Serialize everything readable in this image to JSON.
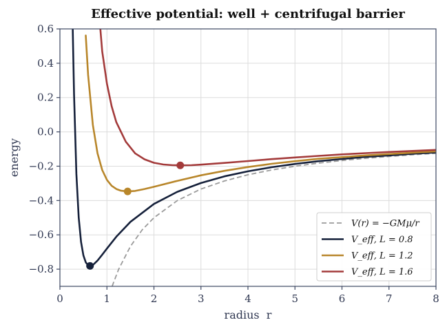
{
  "chart_data": {
    "type": "line",
    "title": "Effective potential: well + centrifugal barrier",
    "xlabel": "radius  r",
    "ylabel": "energy",
    "xlim": [
      0,
      8
    ],
    "ylim": [
      -0.9,
      0.6
    ],
    "xticks": [
      0,
      1,
      2,
      3,
      4,
      5,
      6,
      7,
      8
    ],
    "yticks": [
      -0.8,
      -0.6,
      -0.4,
      -0.2,
      0.0,
      0.2,
      0.4,
      0.6
    ],
    "xtick_labels": [
      "0",
      "1",
      "2",
      "3",
      "4",
      "5",
      "6",
      "7",
      "8"
    ],
    "ytick_labels": [
      "−0.8",
      "−0.6",
      "−0.4",
      "−0.2",
      "0.0",
      "0.2",
      "0.4",
      "0.6"
    ],
    "grid": true,
    "legend_position": "lower-right",
    "series": [
      {
        "name": "V(r) = −GMμ/r",
        "style": "dashed",
        "color": "#9a9a9a",
        "x": [
          1.11,
          1.25,
          1.5,
          1.75,
          2.0,
          2.5,
          3.0,
          3.5,
          4.0,
          4.5,
          5.0,
          5.5,
          6.0,
          6.5,
          7.0,
          7.5,
          8.0
        ],
        "y": [
          -0.9,
          -0.8,
          -0.667,
          -0.571,
          -0.5,
          -0.4,
          -0.333,
          -0.286,
          -0.25,
          -0.222,
          -0.2,
          -0.182,
          -0.167,
          -0.154,
          -0.143,
          -0.133,
          -0.125
        ]
      },
      {
        "name": "V_eff,  L = 0.8",
        "color": "#15203a",
        "minimum": {
          "x": 0.64,
          "y": -0.781
        },
        "x": [
          0.27,
          0.3,
          0.35,
          0.4,
          0.45,
          0.5,
          0.55,
          0.6,
          0.64,
          0.7,
          0.8,
          0.9,
          1.0,
          1.2,
          1.5,
          2.0,
          2.5,
          3.0,
          3.5,
          4.0,
          4.5,
          5.0,
          5.5,
          6.0,
          6.5,
          7.0,
          7.5,
          8.0
        ],
        "y": [
          0.64,
          0.22,
          -0.245,
          -0.5,
          -0.642,
          -0.72,
          -0.76,
          -0.778,
          -0.781,
          -0.776,
          -0.75,
          -0.716,
          -0.68,
          -0.611,
          -0.524,
          -0.42,
          -0.349,
          -0.298,
          -0.259,
          -0.23,
          -0.206,
          -0.187,
          -0.171,
          -0.158,
          -0.146,
          -0.137,
          -0.128,
          -0.12
        ]
      },
      {
        "name": "V_eff,  L = 1.2",
        "color": "#b8862a",
        "minimum": {
          "x": 1.44,
          "y": -0.347
        },
        "x": [
          0.55,
          0.6,
          0.7,
          0.8,
          0.9,
          1.0,
          1.1,
          1.2,
          1.3,
          1.44,
          1.6,
          1.8,
          2.0,
          2.5,
          3.0,
          3.5,
          4.0,
          4.5,
          5.0,
          5.5,
          6.0,
          6.5,
          7.0,
          7.5,
          8.0
        ],
        "y": [
          0.562,
          0.333,
          0.041,
          -0.125,
          -0.222,
          -0.28,
          -0.314,
          -0.333,
          -0.343,
          -0.347,
          -0.344,
          -0.333,
          -0.32,
          -0.285,
          -0.253,
          -0.227,
          -0.205,
          -0.186,
          -0.171,
          -0.157,
          -0.147,
          -0.137,
          -0.129,
          -0.121,
          -0.114
        ]
      },
      {
        "name": "V_eff,  L = 1.6",
        "color": "#a33a3a",
        "minimum": {
          "x": 2.56,
          "y": -0.195
        },
        "x": [
          0.86,
          0.9,
          1.0,
          1.1,
          1.2,
          1.4,
          1.6,
          1.8,
          2.0,
          2.2,
          2.4,
          2.56,
          2.8,
          3.0,
          3.5,
          4.0,
          4.5,
          5.0,
          5.5,
          6.0,
          6.5,
          7.0,
          7.5,
          8.0
        ],
        "y": [
          0.6,
          0.469,
          0.28,
          0.149,
          0.056,
          -0.057,
          -0.125,
          -0.16,
          -0.18,
          -0.19,
          -0.194,
          -0.195,
          -0.194,
          -0.191,
          -0.181,
          -0.17,
          -0.159,
          -0.149,
          -0.14,
          -0.131,
          -0.124,
          -0.117,
          -0.111,
          -0.105
        ]
      }
    ]
  }
}
